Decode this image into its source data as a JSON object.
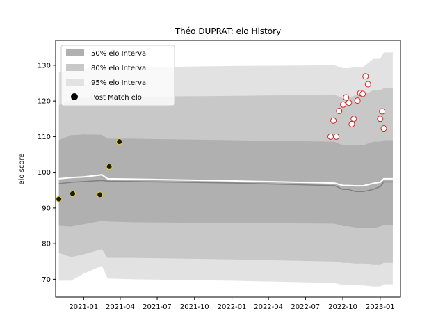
{
  "chart_data": {
    "type": "line",
    "title": "Théo DUPRAT: elo History",
    "xlabel": "",
    "ylabel": "elo score",
    "xlim": [
      "2020-10-24",
      "2023-02-20"
    ],
    "ylim": [
      65,
      137
    ],
    "x_ticks": [
      "2021-01",
      "2021-04",
      "2021-07",
      "2021-10",
      "2022-01",
      "2022-04",
      "2022-07",
      "2022-10",
      "2023-01"
    ],
    "y_ticks": [
      70,
      80,
      90,
      100,
      110,
      120,
      130
    ],
    "grid": false,
    "legend_position": "top-left",
    "legend": [
      {
        "label": "50% elo Interval",
        "kind": "band",
        "color": "#b0b0b0"
      },
      {
        "label": "80% elo Interval",
        "kind": "band",
        "color": "#c8c8c8"
      },
      {
        "label": "95% elo Interval",
        "kind": "band",
        "color": "#e2e2e2"
      },
      {
        "label": "Post Match elo",
        "kind": "marker",
        "color": "#000000"
      }
    ],
    "colors": {
      "band50": "#b0b0b0",
      "band80": "#c8c8c8",
      "band95": "#e2e2e2",
      "mean_line": "#808080",
      "upper_line": "#ffffff",
      "early_marker_fill": "#1a1a1a",
      "early_marker_edge": "#e6d21a",
      "late_marker_fill": "#ffffff",
      "late_marker_edge": "#d62020"
    },
    "bands": {
      "dates": [
        "2020-11-01",
        "2020-12-01",
        "2021-01-01",
        "2021-02-15",
        "2021-03-01",
        "2021-05-01",
        "2022-01-01",
        "2022-09-01",
        "2022-09-10",
        "2022-10-01",
        "2022-10-15",
        "2022-11-01",
        "2022-11-20",
        "2022-12-15",
        "2023-01-01",
        "2023-01-10",
        "2023-02-01"
      ],
      "mean": [
        96.8,
        97.2,
        97.4,
        97.7,
        97.5,
        97.4,
        97.0,
        96.3,
        96.3,
        95.2,
        95.2,
        94.6,
        94.6,
        95.2,
        96.0,
        97.3,
        97.3
      ],
      "upper_line": [
        98.2,
        98.5,
        98.7,
        99.3,
        98.2,
        98.1,
        97.6,
        97.0,
        97.0,
        96.3,
        96.3,
        96.2,
        96.2,
        96.9,
        97.2,
        98.2,
        98.2
      ],
      "p50_low": [
        85.0,
        84.8,
        85.4,
        86.4,
        86.2,
        86.0,
        85.8,
        85.6,
        85.6,
        84.9,
        84.9,
        84.5,
        84.5,
        84.3,
        84.8,
        85.2,
        85.2
      ],
      "p50_high": [
        109.0,
        110.4,
        110.6,
        110.5,
        109.4,
        109.4,
        109.0,
        108.6,
        108.6,
        107.6,
        107.6,
        107.6,
        107.6,
        108.6,
        108.6,
        109.0,
        109.0
      ],
      "p80_low": [
        77.4,
        76.2,
        77.0,
        78.4,
        76.0,
        76.0,
        75.6,
        75.0,
        75.0,
        74.6,
        74.6,
        74.4,
        74.4,
        74.0,
        74.0,
        74.6,
        74.6
      ],
      "p80_high": [
        118.8,
        120.6,
        120.8,
        121.0,
        121.0,
        121.2,
        121.4,
        121.8,
        121.8,
        120.8,
        120.8,
        121.6,
        121.6,
        123.0,
        123.0,
        123.6,
        123.6
      ],
      "p95_low": [
        69.6,
        69.6,
        71.6,
        73.8,
        70.2,
        70.0,
        69.6,
        69.0,
        69.0,
        68.4,
        68.4,
        68.3,
        68.3,
        68.0,
        68.0,
        68.6,
        68.6
      ],
      "p95_high": [
        128.2,
        128.4,
        129.0,
        129.2,
        129.2,
        129.4,
        129.8,
        130.0,
        130.0,
        129.2,
        129.2,
        129.5,
        129.5,
        131.8,
        131.8,
        133.6,
        133.6
      ]
    },
    "series": [
      {
        "marker": "early",
        "x": [
          "2020-11-01",
          "2020-12-05",
          "2021-02-10",
          "2021-03-05",
          "2021-03-30"
        ],
        "y": [
          92.5,
          94.0,
          93.7,
          101.6,
          108.6
        ]
      },
      {
        "marker": "late",
        "x": [
          "2022-09-01",
          "2022-09-08",
          "2022-09-15",
          "2022-09-22",
          "2022-10-02",
          "2022-10-09",
          "2022-10-16",
          "2022-10-23",
          "2022-10-28",
          "2022-11-06",
          "2022-11-13",
          "2022-11-19",
          "2022-11-26",
          "2022-12-02",
          "2023-01-01",
          "2023-01-06",
          "2023-01-10"
        ],
        "y": [
          110.0,
          114.5,
          110.0,
          117.2,
          119.0,
          121.0,
          119.5,
          113.5,
          115.0,
          120.1,
          122.2,
          122.0,
          126.9,
          124.7,
          115.0,
          117.1,
          112.3
        ]
      }
    ]
  }
}
